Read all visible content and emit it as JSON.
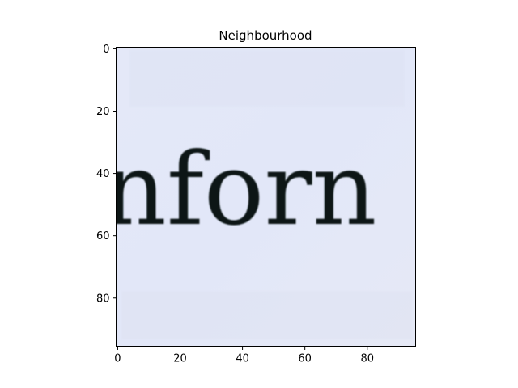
{
  "chart_data": {
    "type": "image",
    "title": "Neighbourhood",
    "xlabel": "",
    "ylabel": "",
    "image_size": [
      96,
      96
    ],
    "xlim": [
      -0.5,
      95.5
    ],
    "ylim": [
      95.5,
      -0.5
    ],
    "xticks": [
      0,
      20,
      40,
      60,
      80
    ],
    "yticks": [
      0,
      20,
      40,
      60,
      80
    ],
    "xtick_labels": [
      "0",
      "20",
      "40",
      "60",
      "80"
    ],
    "ytick_labels": [
      "0",
      "20",
      "40",
      "60",
      "80"
    ],
    "image_text": "nforn",
    "background_color": "#e3e8f8",
    "text_color": "#0c1512",
    "grid": false
  }
}
